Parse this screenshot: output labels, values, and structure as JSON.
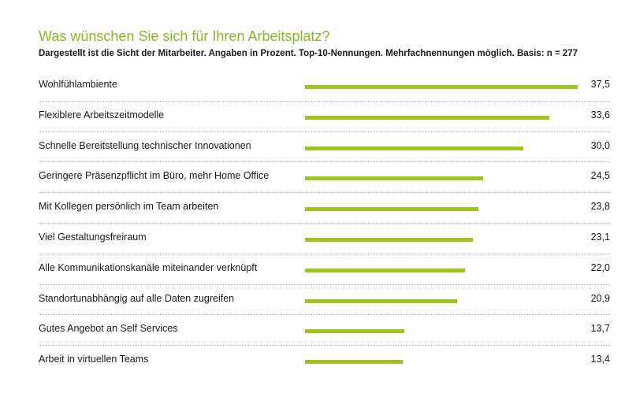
{
  "chart_data": {
    "type": "bar",
    "orientation": "horizontal",
    "title": "Was wünschen Sie sich für Ihren Arbeitsplatz?",
    "subtitle": "Dargestellt ist die Sicht der Mitarbeiter. Angaben in Prozent. Top-10-Nennungen. Mehrfachnennungen möglich. Basis: n = 277",
    "categories": [
      "Wohlfühlambiente",
      "Flexiblere Arbeitszeitmodelle",
      "Schnelle Bereitstellung technischer Innovationen",
      "Geringere Präsenzpflicht im Büro, mehr Home Office",
      "Mit Kollegen persönlich im Team arbeiten",
      "Viel Gestaltungsfreiraum",
      "Alle Kommunikationskanäle miteinander verknüpft",
      "Standortunabhängig auf alle Daten zugreifen",
      "Gutes Angebot an Self Services",
      "Arbeit in virtuellen Teams"
    ],
    "values": [
      37.5,
      33.6,
      30.0,
      24.5,
      23.8,
      23.1,
      22.0,
      20.9,
      13.7,
      13.4
    ],
    "value_labels": [
      "37,5",
      "33,6",
      "30,0",
      "24,5",
      "23,8",
      "23,1",
      "22,0",
      "20,9",
      "13,7",
      "13,4"
    ],
    "xlim": [
      0,
      37.5
    ],
    "xlabel": "",
    "ylabel": "",
    "bar_color": "#9ec31b",
    "title_color": "#8db526"
  }
}
